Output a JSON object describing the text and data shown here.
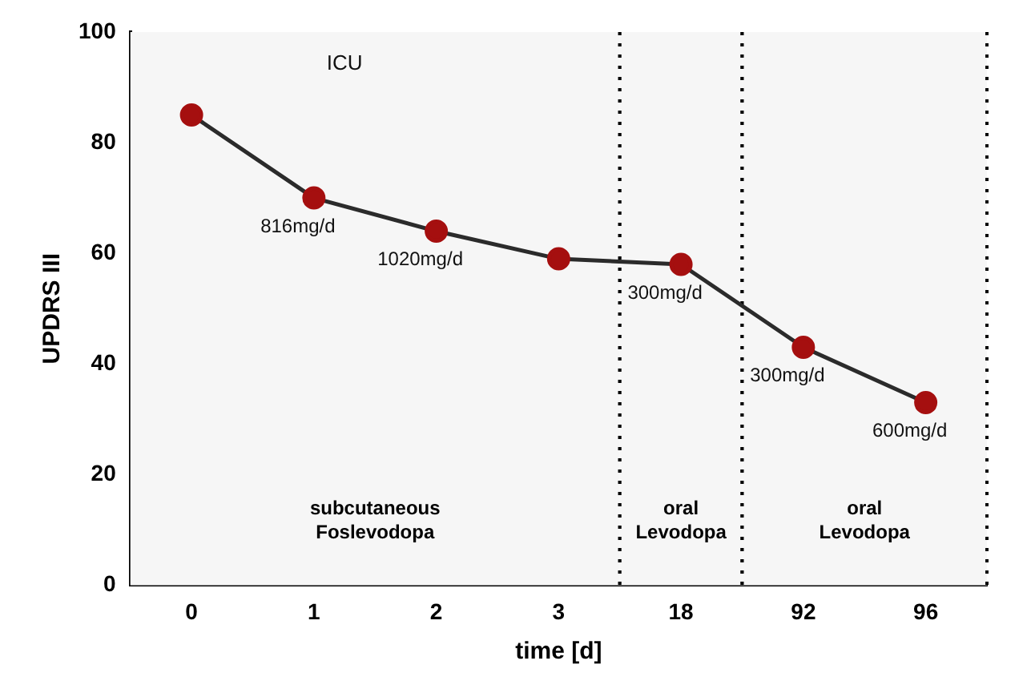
{
  "chart_data": {
    "type": "line",
    "xlabel": "time [d]",
    "ylabel": "UPDRS III",
    "categories": [
      "0",
      "1",
      "2",
      "3",
      "18",
      "92",
      "96"
    ],
    "series": [
      {
        "color": "#a50f0f",
        "values": [
          85,
          70,
          64,
          59,
          58,
          43,
          33
        ]
      }
    ],
    "ylim": [
      0,
      100
    ],
    "yticks": [
      0,
      20,
      40,
      60,
      80,
      100
    ],
    "grid": false,
    "legend": false,
    "marker": "circle",
    "line_style": "solid",
    "bands": [
      {
        "axis": "x",
        "from": "0",
        "to": "3",
        "label": "subcutaneous Foslevodopa",
        "color": "#f6f6f6"
      },
      {
        "axis": "x",
        "from": "18",
        "to": "18",
        "label": "oral Levodopa",
        "color": "#f6f6f6"
      },
      {
        "axis": "x",
        "from": "92",
        "to": "96",
        "label": "oral Levodopa",
        "color": "#f6f6f6"
      }
    ],
    "annotations": [
      "ICU",
      {
        "text": "816mg/d",
        "x": "1",
        "y": 70
      },
      {
        "text": "1020mg/d",
        "x": "2",
        "y": 64
      },
      {
        "text": "300mg/d",
        "x": "18",
        "y": 58
      },
      {
        "text": "300mg/d",
        "x": "92",
        "y": 43
      },
      {
        "text": "600mg/d",
        "x": "96",
        "y": 33
      }
    ]
  }
}
